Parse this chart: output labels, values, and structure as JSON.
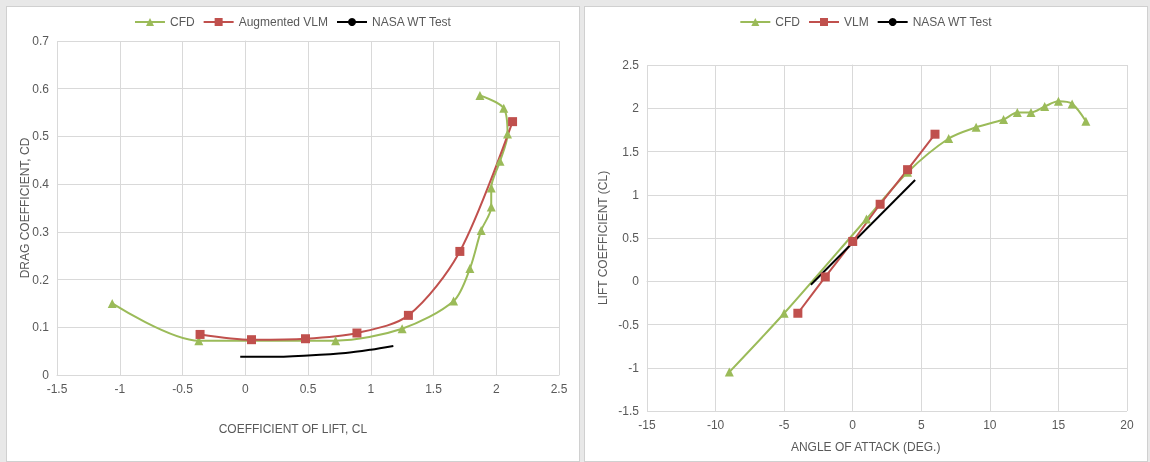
{
  "chart_data": [
    {
      "type": "line",
      "xlabel": "COEFFICIENT OF LIFT, CL",
      "ylabel": "DRAG COEFFICIENT, CD",
      "xlim": [
        -1.5,
        2.5
      ],
      "xticks": [
        -1.5,
        -1,
        -0.5,
        0,
        0.5,
        1,
        1.5,
        2,
        2.5
      ],
      "ylim": [
        0,
        0.7
      ],
      "yticks": [
        0,
        0.1,
        0.2,
        0.3,
        0.4,
        0.5,
        0.6,
        0.7
      ],
      "grid": true,
      "legend": "top",
      "series": [
        {
          "name": "CFD",
          "color": "#9bbb59",
          "marker": "triangle",
          "x": [
            -1.06,
            -0.37,
            0.72,
            1.25,
            1.66,
            1.79,
            1.88,
            1.96,
            1.96,
            2.03,
            2.09,
            2.06,
            1.87
          ],
          "values": [
            0.15,
            0.072,
            0.072,
            0.097,
            0.155,
            0.223,
            0.303,
            0.352,
            0.392,
            0.448,
            0.505,
            0.559,
            0.586
          ]
        },
        {
          "name": "Augmented VLM",
          "color": "#c0504d",
          "marker": "square",
          "x": [
            -0.36,
            0.05,
            0.48,
            0.89,
            1.3,
            1.71,
            2.13
          ],
          "values": [
            0.085,
            0.074,
            0.076,
            0.088,
            0.125,
            0.259,
            0.531
          ]
        },
        {
          "name": "NASA WT Test",
          "color": "#000000",
          "marker": "none",
          "x": [
            -0.04,
            0.2,
            0.5,
            0.8,
            1.0,
            1.18
          ],
          "values": [
            0.038,
            0.038,
            0.041,
            0.046,
            0.053,
            0.061
          ]
        }
      ]
    },
    {
      "type": "line",
      "xlabel": "ANGLE OF ATTACK (DEG.)",
      "ylabel": "LIFT COEFFICIENT (CL)",
      "xlim": [
        -15,
        20
      ],
      "xticks": [
        -15,
        -10,
        -5,
        0,
        5,
        10,
        15,
        20
      ],
      "ylim": [
        -1.5,
        2.5
      ],
      "yticks": [
        -1.5,
        -1,
        -0.5,
        0,
        0.5,
        1,
        1.5,
        2,
        2.5
      ],
      "grid": true,
      "legend": "top",
      "series": [
        {
          "name": "CFD",
          "color": "#9bbb59",
          "marker": "triangle",
          "x": [
            -9,
            -5,
            1,
            4,
            7,
            9,
            11,
            12,
            13,
            14,
            15,
            16,
            17
          ],
          "values": [
            -1.05,
            -0.37,
            0.72,
            1.26,
            1.65,
            1.78,
            1.87,
            1.95,
            1.95,
            2.02,
            2.08,
            2.05,
            1.85
          ]
        },
        {
          "name": "VLM",
          "color": "#c0504d",
          "marker": "square",
          "x": [
            -4,
            -2,
            0,
            2,
            4,
            6
          ],
          "values": [
            -0.37,
            0.05,
            0.46,
            0.89,
            1.29,
            1.7
          ]
        },
        {
          "name": "NASA WT Test",
          "color": "#000000",
          "marker": "none",
          "x": [
            -3.05,
            4.55
          ],
          "values": [
            -0.04,
            1.17
          ]
        }
      ]
    }
  ]
}
